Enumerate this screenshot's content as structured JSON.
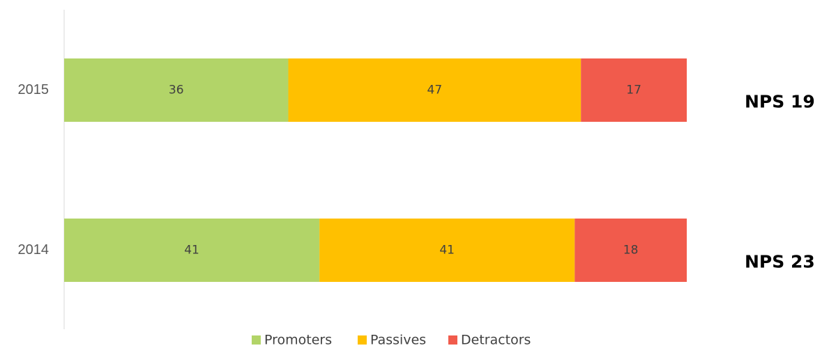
{
  "chart_data": {
    "type": "bar",
    "orientation": "horizontal",
    "stacked": true,
    "categories": [
      "2015",
      "2014"
    ],
    "series": [
      {
        "name": "Promoters",
        "values": [
          36,
          41
        ],
        "color": "#b2d468"
      },
      {
        "name": "Passives",
        "values": [
          47,
          41
        ],
        "color": "#ffc000"
      },
      {
        "name": "Detractors",
        "values": [
          17,
          18
        ],
        "color": "#f15b4c"
      }
    ],
    "xlim": [
      0,
      100
    ],
    "grid": false,
    "legend": "bottom",
    "annotations": [
      "NPS 19",
      "NPS 23"
    ]
  }
}
